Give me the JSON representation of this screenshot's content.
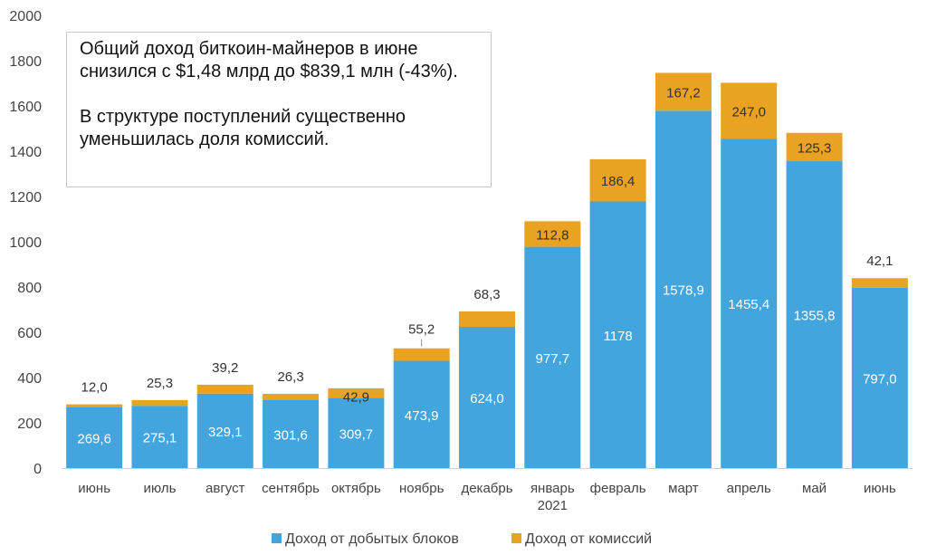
{
  "chart_data": {
    "type": "bar",
    "stacked": true,
    "categories": [
      "июнь",
      "июль",
      "август",
      "сентябрь",
      "октябрь",
      "ноябрь",
      "декабрь",
      "январь\n2021",
      "февраль",
      "март",
      "апрель",
      "май",
      "июнь"
    ],
    "series": [
      {
        "name": "Доход от добытых блоков",
        "color": "#42a5dd",
        "values": [
          269.6,
          275.1,
          329.1,
          301.6,
          309.7,
          473.9,
          624.0,
          977.7,
          1178,
          1578.9,
          1455.4,
          1355.8,
          797.0
        ],
        "labels": [
          "269,6",
          "275,1",
          "329,1",
          "301,6",
          "309,7",
          "473,9",
          "624,0",
          "977,7",
          "1178",
          "1578,9",
          "1455,4",
          "1355,8",
          "797,0"
        ]
      },
      {
        "name": "Доход от комиссий",
        "color": "#e9a221",
        "values": [
          12.0,
          25.3,
          39.2,
          26.3,
          42.9,
          55.2,
          68.3,
          112.8,
          186.4,
          167.2,
          247.0,
          125.3,
          42.1
        ],
        "labels": [
          "12,0",
          "25,3",
          "39,2",
          "26,3",
          "42,9",
          "55,2",
          "68,3",
          "112,8",
          "186,4",
          "167,2",
          "247,0",
          "125,3",
          "42,1"
        ]
      }
    ],
    "ylim": [
      0,
      2000
    ],
    "yticks": [
      "0",
      "200",
      "400",
      "600",
      "800",
      "1000",
      "1200",
      "1400",
      "1600",
      "1800",
      "2000"
    ],
    "grid": false,
    "legend_position": "bottom",
    "annotation": {
      "paragraph1": "Общий доход биткоин-майнеров в июне снизился с $1,48 млрд до $839,1 млн (-43%).",
      "paragraph2": "В структуре поступлений существенно уменьшилась доля комиссий."
    }
  }
}
